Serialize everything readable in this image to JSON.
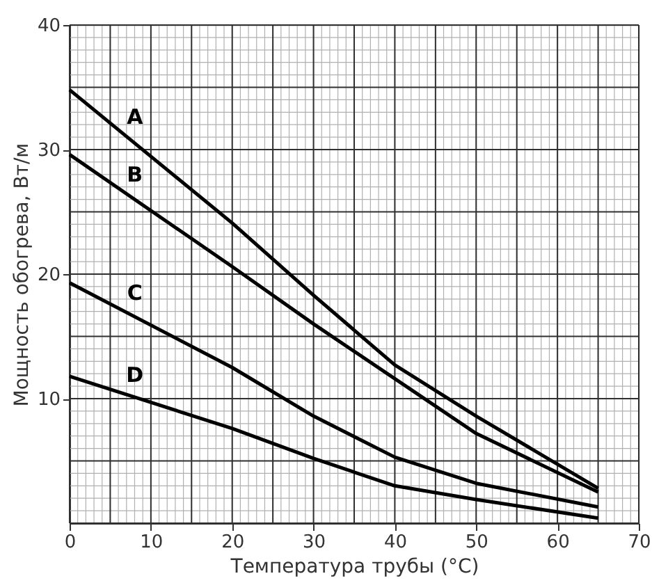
{
  "chart_data": {
    "type": "line",
    "xlabel": "Температура трубы (°C)",
    "ylabel": "Мощность обогрева, Вт/м",
    "x": [
      0,
      20,
      30,
      40,
      50,
      65
    ],
    "series": [
      {
        "name": "A",
        "color": "#000000",
        "values": [
          34.8,
          24.1,
          18.3,
          12.7,
          8.6,
          2.8
        ]
      },
      {
        "name": "B",
        "color": "#000000",
        "values": [
          29.6,
          20.6,
          16.0,
          11.6,
          7.2,
          2.5
        ]
      },
      {
        "name": "C",
        "color": "#000000",
        "values": [
          19.3,
          12.5,
          8.6,
          5.3,
          3.2,
          1.3
        ]
      },
      {
        "name": "D",
        "color": "#000000",
        "values": [
          11.8,
          7.6,
          5.2,
          3.0,
          1.9,
          0.4
        ]
      }
    ],
    "xlim": [
      0,
      70
    ],
    "ylim": [
      0,
      40
    ],
    "xticks": [
      0,
      10,
      20,
      30,
      40,
      50,
      60,
      70
    ],
    "yticks": [
      10,
      20,
      30,
      40
    ],
    "grid": true,
    "legend": false,
    "marker": "none",
    "line_style": "solid"
  }
}
